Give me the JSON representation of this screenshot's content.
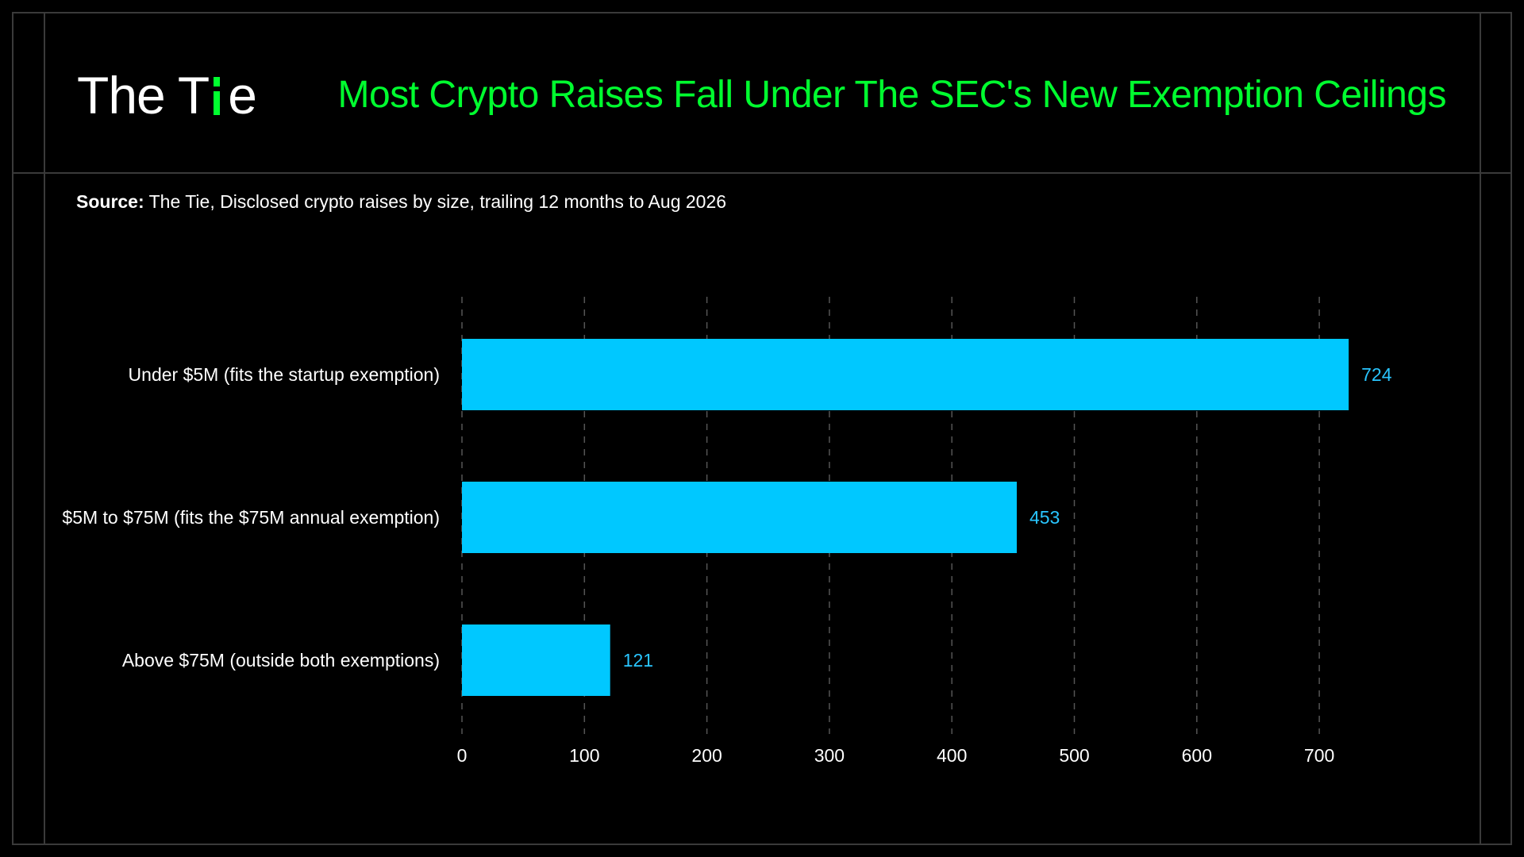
{
  "header": {
    "logo_text_before": "The T",
    "logo_text_after": "e",
    "title": "Most Crypto Raises Fall Under The SEC's New Exemption Ceilings"
  },
  "source": {
    "label": "Source:",
    "text": " The Tie, Disclosed crypto raises by size, trailing 12 months to Aug 2026"
  },
  "colors": {
    "background": "#000000",
    "title": "#00ff2f",
    "bar": "#00c8ff",
    "value_label": "#29c5ff",
    "grid": "#555555",
    "frame": "#3a3a3a"
  },
  "chart_data": {
    "type": "bar",
    "orientation": "horizontal",
    "title": "Most Crypto Raises Fall Under The SEC's New Exemption Ceilings",
    "categories": [
      "Under $5M (fits the startup exemption)",
      "$5M to $75M (fits the $75M annual exemption)",
      "Above $75M (outside both exemptions)"
    ],
    "values": [
      724,
      453,
      121
    ],
    "xlim": [
      0,
      750
    ],
    "xticks": [
      0,
      100,
      200,
      300,
      400,
      500,
      600,
      700
    ],
    "xlabel": "",
    "ylabel": "",
    "grid": "vertical-dashed",
    "data_labels": true
  }
}
